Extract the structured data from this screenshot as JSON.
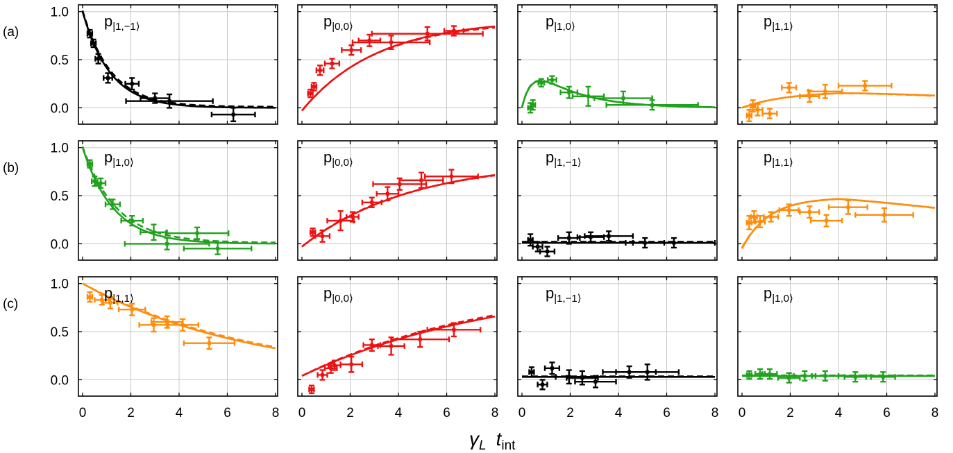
{
  "figure": {
    "row_labels": [
      "(a)",
      "(b)",
      "(c)"
    ],
    "x_axis_title": {
      "symbol": "γ",
      "sub": "L",
      "t": "t",
      "t_sub": "int"
    },
    "colors": {
      "p|1,-1⟩": "#000000",
      "p|0,0⟩": "#ee1111",
      "p|1,0⟩": "#22a11f",
      "p|1,1⟩": "#ff8c0a"
    }
  },
  "chart_data": [
    {
      "row": "(a)",
      "col": 0,
      "type": "scatter",
      "label_main": "p",
      "label_sub": "|1,−1⟩",
      "color": "#000000",
      "xlim": [
        0,
        8
      ],
      "ylim": [
        -0.17,
        1.07
      ],
      "x_ticks": [
        "0",
        "2",
        "4",
        "6",
        "8"
      ],
      "y_ticks": [
        "1.0",
        "0.5",
        "0.0"
      ],
      "points": [
        [
          0.3,
          0.77,
          0.1,
          0.04
        ],
        [
          0.45,
          0.67,
          0.1,
          0.04
        ],
        [
          0.65,
          0.51,
          0.12,
          0.05
        ],
        [
          1.05,
          0.31,
          0.18,
          0.05
        ],
        [
          2.05,
          0.25,
          0.28,
          0.06
        ],
        [
          3.0,
          0.1,
          0.6,
          0.05
        ],
        [
          3.6,
          0.07,
          1.8,
          0.07
        ],
        [
          6.25,
          -0.07,
          0.9,
          0.07
        ]
      ],
      "fit_solid": {
        "kind": "exp",
        "a": 1.0,
        "k": 0.88,
        "c": 0.0
      },
      "fit_dashed": {
        "kind": "exp",
        "a": 1.0,
        "k": 0.85,
        "c": 0.01
      }
    },
    {
      "row": "(a)",
      "col": 1,
      "type": "scatter",
      "label_main": "p",
      "label_sub": "|0,0⟩",
      "color": "#ee1111",
      "xlim": [
        0,
        8
      ],
      "ylim": [
        -0.17,
        1.07
      ],
      "points": [
        [
          0.35,
          0.15,
          0.1,
          0.04
        ],
        [
          0.5,
          0.22,
          0.1,
          0.04
        ],
        [
          0.75,
          0.39,
          0.15,
          0.05
        ],
        [
          1.25,
          0.46,
          0.3,
          0.05
        ],
        [
          2.05,
          0.6,
          0.4,
          0.05
        ],
        [
          2.8,
          0.7,
          0.45,
          0.06
        ],
        [
          3.7,
          0.68,
          1.6,
          0.07
        ],
        [
          5.2,
          0.77,
          2.3,
          0.07
        ],
        [
          6.3,
          0.8,
          0.4,
          0.05
        ]
      ],
      "fit_solid": {
        "kind": "sat",
        "a": 0.95,
        "k": 0.32,
        "c": -0.03
      },
      "fit_dashed": {
        "kind": "sat",
        "a": 0.93,
        "k": 0.33,
        "c": -0.03
      }
    },
    {
      "row": "(a)",
      "col": 2,
      "type": "scatter",
      "label_main": "p",
      "label_sub": "|1,0⟩",
      "color": "#22a11f",
      "xlim": [
        0,
        8
      ],
      "ylim": [
        -0.17,
        1.07
      ],
      "points": [
        [
          0.35,
          0.0,
          0.1,
          0.05
        ],
        [
          0.45,
          0.03,
          0.1,
          0.05
        ],
        [
          0.8,
          0.26,
          0.12,
          0.04
        ],
        [
          1.25,
          0.29,
          0.18,
          0.04
        ],
        [
          1.95,
          0.16,
          0.35,
          0.06
        ],
        [
          2.75,
          0.12,
          0.65,
          0.1
        ],
        [
          4.2,
          0.1,
          1.2,
          0.07
        ],
        [
          5.4,
          0.03,
          1.9,
          0.05
        ]
      ],
      "fit_solid": {
        "kind": "peak",
        "a": 0.55,
        "k1": 0.8,
        "k2": 1.8,
        "c": 0.0
      },
      "fit_dashed": {
        "kind": "peak",
        "a": 0.55,
        "k1": 0.78,
        "k2": 1.8,
        "c": 0.0
      }
    },
    {
      "row": "(a)",
      "col": 3,
      "type": "scatter",
      "label_main": "p",
      "label_sub": "|1,1⟩",
      "color": "#ff8c0a",
      "xlim": [
        0,
        8
      ],
      "ylim": [
        -0.17,
        1.07
      ],
      "points": [
        [
          0.3,
          -0.08,
          0.1,
          0.06
        ],
        [
          0.45,
          0.02,
          0.1,
          0.06
        ],
        [
          0.65,
          -0.02,
          0.2,
          0.06
        ],
        [
          1.15,
          -0.06,
          0.3,
          0.05
        ],
        [
          1.95,
          0.21,
          0.3,
          0.05
        ],
        [
          2.8,
          0.12,
          0.4,
          0.06
        ],
        [
          3.45,
          0.17,
          0.7,
          0.07
        ],
        [
          5.1,
          0.23,
          1.1,
          0.05
        ]
      ],
      "fit_solid": {
        "kind": "rise",
        "a": 0.17,
        "k": 0.55,
        "d": 0.06,
        "c": 0.0
      },
      "fit_dashed": {
        "kind": "rise",
        "a": 0.17,
        "k": 0.55,
        "d": 0.065,
        "c": 0.0
      }
    },
    {
      "row": "(b)",
      "col": 0,
      "type": "scatter",
      "label_main": "p",
      "label_sub": "|1,0⟩",
      "color": "#22a11f",
      "xlim": [
        0,
        8
      ],
      "ylim": [
        -0.17,
        1.07
      ],
      "points": [
        [
          0.3,
          0.83,
          0.1,
          0.04
        ],
        [
          0.5,
          0.65,
          0.12,
          0.05
        ],
        [
          0.75,
          0.63,
          0.2,
          0.05
        ],
        [
          1.25,
          0.41,
          0.3,
          0.05
        ],
        [
          2.05,
          0.24,
          0.45,
          0.05
        ],
        [
          2.95,
          0.12,
          0.55,
          0.08
        ],
        [
          3.5,
          0.0,
          1.75,
          0.06
        ],
        [
          4.75,
          0.11,
          1.3,
          0.06
        ],
        [
          5.6,
          -0.05,
          1.4,
          0.06
        ]
      ],
      "fit_solid": {
        "kind": "exp",
        "a": 1.0,
        "k": 0.78,
        "c": 0.0
      },
      "fit_dashed": {
        "kind": "exp",
        "a": 1.0,
        "k": 0.72,
        "c": 0.01
      }
    },
    {
      "row": "(b)",
      "col": 1,
      "type": "scatter",
      "label_main": "p",
      "label_sub": "|0,0⟩",
      "color": "#ee1111",
      "xlim": [
        0,
        8
      ],
      "ylim": [
        -0.17,
        1.07
      ],
      "points": [
        [
          0.45,
          0.12,
          0.1,
          0.04
        ],
        [
          0.85,
          0.08,
          0.3,
          0.06
        ],
        [
          1.6,
          0.24,
          0.55,
          0.1
        ],
        [
          2.1,
          0.28,
          0.25,
          0.05
        ],
        [
          2.9,
          0.43,
          0.4,
          0.05
        ],
        [
          3.55,
          0.52,
          0.45,
          0.07
        ],
        [
          4.05,
          0.62,
          1.1,
          0.06
        ],
        [
          4.95,
          0.66,
          0.9,
          0.08
        ],
        [
          6.2,
          0.7,
          1.1,
          0.07
        ]
      ],
      "fit_solid": {
        "kind": "sat",
        "a": 0.9,
        "k": 0.22,
        "c": -0.03
      },
      "fit_dashed": {
        "kind": "sat",
        "a": 0.88,
        "k": 0.23,
        "c": -0.03
      }
    },
    {
      "row": "(b)",
      "col": 2,
      "type": "scatter",
      "label_main": "p",
      "label_sub": "|1,−1⟩",
      "color": "#000000",
      "xlim": [
        0,
        8
      ],
      "ylim": [
        -0.17,
        1.07
      ],
      "points": [
        [
          0.35,
          0.04,
          0.1,
          0.06
        ],
        [
          0.65,
          -0.03,
          0.2,
          0.05
        ],
        [
          1.05,
          -0.08,
          0.3,
          0.05
        ],
        [
          1.95,
          0.06,
          0.45,
          0.06
        ],
        [
          2.85,
          0.07,
          0.55,
          0.05
        ],
        [
          3.6,
          0.08,
          1.0,
          0.05
        ],
        [
          5.1,
          0.01,
          0.8,
          0.05
        ],
        [
          6.3,
          0.01,
          1.7,
          0.05
        ]
      ],
      "fit_solid": {
        "kind": "flat",
        "c": 0.01
      },
      "fit_dashed": {
        "kind": "flat",
        "c": 0.02
      }
    },
    {
      "row": "(b)",
      "col": 3,
      "type": "scatter",
      "label_main": "p",
      "label_sub": "|1,1⟩",
      "color": "#ff8c0a",
      "xlim": [
        0,
        8
      ],
      "ylim": [
        -0.17,
        1.07
      ],
      "points": [
        [
          0.3,
          0.22,
          0.1,
          0.07
        ],
        [
          0.5,
          0.28,
          0.12,
          0.06
        ],
        [
          0.75,
          0.23,
          0.2,
          0.06
        ],
        [
          1.2,
          0.28,
          0.3,
          0.05
        ],
        [
          1.95,
          0.35,
          0.4,
          0.06
        ],
        [
          2.8,
          0.33,
          0.4,
          0.06
        ],
        [
          3.5,
          0.24,
          0.65,
          0.06
        ],
        [
          4.4,
          0.38,
          0.8,
          0.07
        ],
        [
          5.9,
          0.3,
          1.2,
          0.07
        ]
      ],
      "fit_solid": {
        "kind": "rise",
        "a": 0.48,
        "k": 0.9,
        "d": 0.055,
        "c": -0.05
      },
      "fit_dashed": {
        "kind": "rise",
        "a": 0.48,
        "k": 0.88,
        "d": 0.056,
        "c": -0.04
      }
    },
    {
      "row": "(c)",
      "col": 0,
      "type": "scatter",
      "label_main": "p",
      "label_sub": "|1,1⟩",
      "color": "#ff8c0a",
      "xlim": [
        0,
        8
      ],
      "ylim": [
        -0.17,
        1.07
      ],
      "points": [
        [
          0.3,
          0.86,
          0.1,
          0.05
        ],
        [
          0.8,
          0.83,
          0.3,
          0.05
        ],
        [
          1.15,
          0.8,
          0.3,
          0.06
        ],
        [
          2.05,
          0.73,
          0.55,
          0.06
        ],
        [
          2.95,
          0.57,
          0.6,
          0.07
        ],
        [
          3.5,
          0.6,
          0.65,
          0.06
        ],
        [
          4.15,
          0.57,
          0.65,
          0.06
        ],
        [
          5.25,
          0.38,
          1.05,
          0.06
        ]
      ],
      "fit_solid": {
        "kind": "exp",
        "a": 1.0,
        "k": 0.14,
        "c": 0.0
      },
      "fit_dashed": {
        "kind": "exp",
        "a": 1.0,
        "k": 0.135,
        "c": 0.0
      }
    },
    {
      "row": "(c)",
      "col": 1,
      "type": "scatter",
      "label_main": "p",
      "label_sub": "|0,0⟩",
      "color": "#ee1111",
      "xlim": [
        0,
        8
      ],
      "ylim": [
        -0.17,
        1.07
      ],
      "points": [
        [
          0.4,
          -0.1,
          0.1,
          0.04
        ],
        [
          0.85,
          0.05,
          0.2,
          0.05
        ],
        [
          1.2,
          0.12,
          0.25,
          0.05
        ],
        [
          1.35,
          0.15,
          0.25,
          0.05
        ],
        [
          2.05,
          0.16,
          0.45,
          0.08
        ],
        [
          2.9,
          0.36,
          0.35,
          0.06
        ],
        [
          3.7,
          0.35,
          0.55,
          0.09
        ],
        [
          4.9,
          0.42,
          1.2,
          0.08
        ],
        [
          6.3,
          0.52,
          1.1,
          0.07
        ]
      ],
      "fit_solid": {
        "kind": "sat",
        "a": 1.0,
        "k": 0.12,
        "c": 0.04
      },
      "fit_dashed": {
        "kind": "sat",
        "a": 1.0,
        "k": 0.125,
        "c": 0.04
      }
    },
    {
      "row": "(c)",
      "col": 2,
      "type": "scatter",
      "label_main": "p",
      "label_sub": "|1,−1⟩",
      "color": "#000000",
      "xlim": [
        0,
        8
      ],
      "ylim": [
        -0.17,
        1.07
      ],
      "points": [
        [
          0.4,
          0.08,
          0.1,
          0.05
        ],
        [
          0.85,
          -0.05,
          0.2,
          0.05
        ],
        [
          1.25,
          0.12,
          0.3,
          0.06
        ],
        [
          1.95,
          0.03,
          0.55,
          0.07
        ],
        [
          2.5,
          0.02,
          0.65,
          0.07
        ],
        [
          3.05,
          -0.02,
          0.85,
          0.06
        ],
        [
          4.45,
          0.08,
          1.1,
          0.06
        ],
        [
          5.2,
          0.08,
          1.3,
          0.08
        ]
      ],
      "fit_solid": {
        "kind": "flat",
        "c": 0.03
      },
      "fit_dashed": {
        "kind": "flat",
        "c": 0.035
      }
    },
    {
      "row": "(c)",
      "col": 3,
      "type": "scatter",
      "label_main": "p",
      "label_sub": "|1,0⟩",
      "color": "#22a11f",
      "xlim": [
        0,
        8
      ],
      "ylim": [
        -0.17,
        1.07
      ],
      "points": [
        [
          0.3,
          0.05,
          0.1,
          0.04
        ],
        [
          0.75,
          0.06,
          0.2,
          0.05
        ],
        [
          1.15,
          0.06,
          0.3,
          0.05
        ],
        [
          1.95,
          0.02,
          0.45,
          0.05
        ],
        [
          2.6,
          0.04,
          0.45,
          0.05
        ],
        [
          3.45,
          0.04,
          0.55,
          0.05
        ],
        [
          4.7,
          0.03,
          0.45,
          0.05
        ],
        [
          5.85,
          0.03,
          0.5,
          0.05
        ]
      ],
      "fit_solid": {
        "kind": "flat",
        "c": 0.04
      },
      "fit_dashed": {
        "kind": "flat",
        "c": 0.045
      }
    }
  ]
}
